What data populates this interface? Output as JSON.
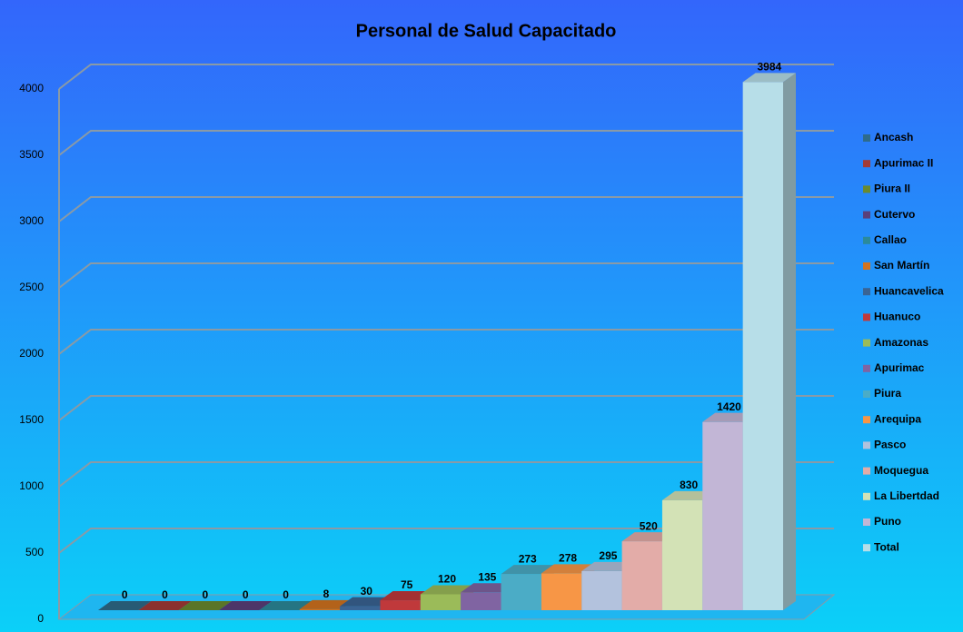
{
  "chart_data": {
    "type": "bar3d",
    "title": "Personal de Salud Capacitado",
    "ylim": [
      0,
      4000
    ],
    "yticks": [
      0,
      500,
      1000,
      1500,
      2000,
      2500,
      3000,
      3500,
      4000
    ],
    "grid": true,
    "legend": "right",
    "series": [
      {
        "name": "Ancash",
        "color": "#2e6b8a",
        "values": [
          0
        ]
      },
      {
        "name": "Apurimac II",
        "color": "#a33a36",
        "values": [
          0
        ]
      },
      {
        "name": "Piura II",
        "color": "#6a8a2e",
        "values": [
          0
        ]
      },
      {
        "name": "Cutervo",
        "color": "#5a3f7a",
        "values": [
          0
        ]
      },
      {
        "name": "Callao",
        "color": "#2b8a9a",
        "values": [
          0
        ]
      },
      {
        "name": "San Martín",
        "color": "#d2731f",
        "values": [
          8
        ]
      },
      {
        "name": "Huancavelica",
        "color": "#3a6494",
        "values": [
          30
        ]
      },
      {
        "name": "Huanuco",
        "color": "#c0393b",
        "values": [
          75
        ]
      },
      {
        "name": "Amazonas",
        "color": "#9bbb59",
        "values": [
          120
        ]
      },
      {
        "name": "Apurimac",
        "color": "#8064a2",
        "values": [
          135
        ]
      },
      {
        "name": "Piura",
        "color": "#4bacc6",
        "values": [
          273
        ]
      },
      {
        "name": "Arequipa",
        "color": "#f79646",
        "values": [
          278
        ]
      },
      {
        "name": "Pasco",
        "color": "#b3c2dd",
        "values": [
          295
        ]
      },
      {
        "name": "Moquegua",
        "color": "#e3aca8",
        "values": [
          520
        ]
      },
      {
        "name": "La Libertdad",
        "color": "#d3e2b6",
        "values": [
          830
        ]
      },
      {
        "name": "Puno",
        "color": "#c2b6d6",
        "values": [
          1420
        ]
      },
      {
        "name": "Total",
        "color": "#b7dee8",
        "values": [
          3984
        ]
      }
    ]
  }
}
